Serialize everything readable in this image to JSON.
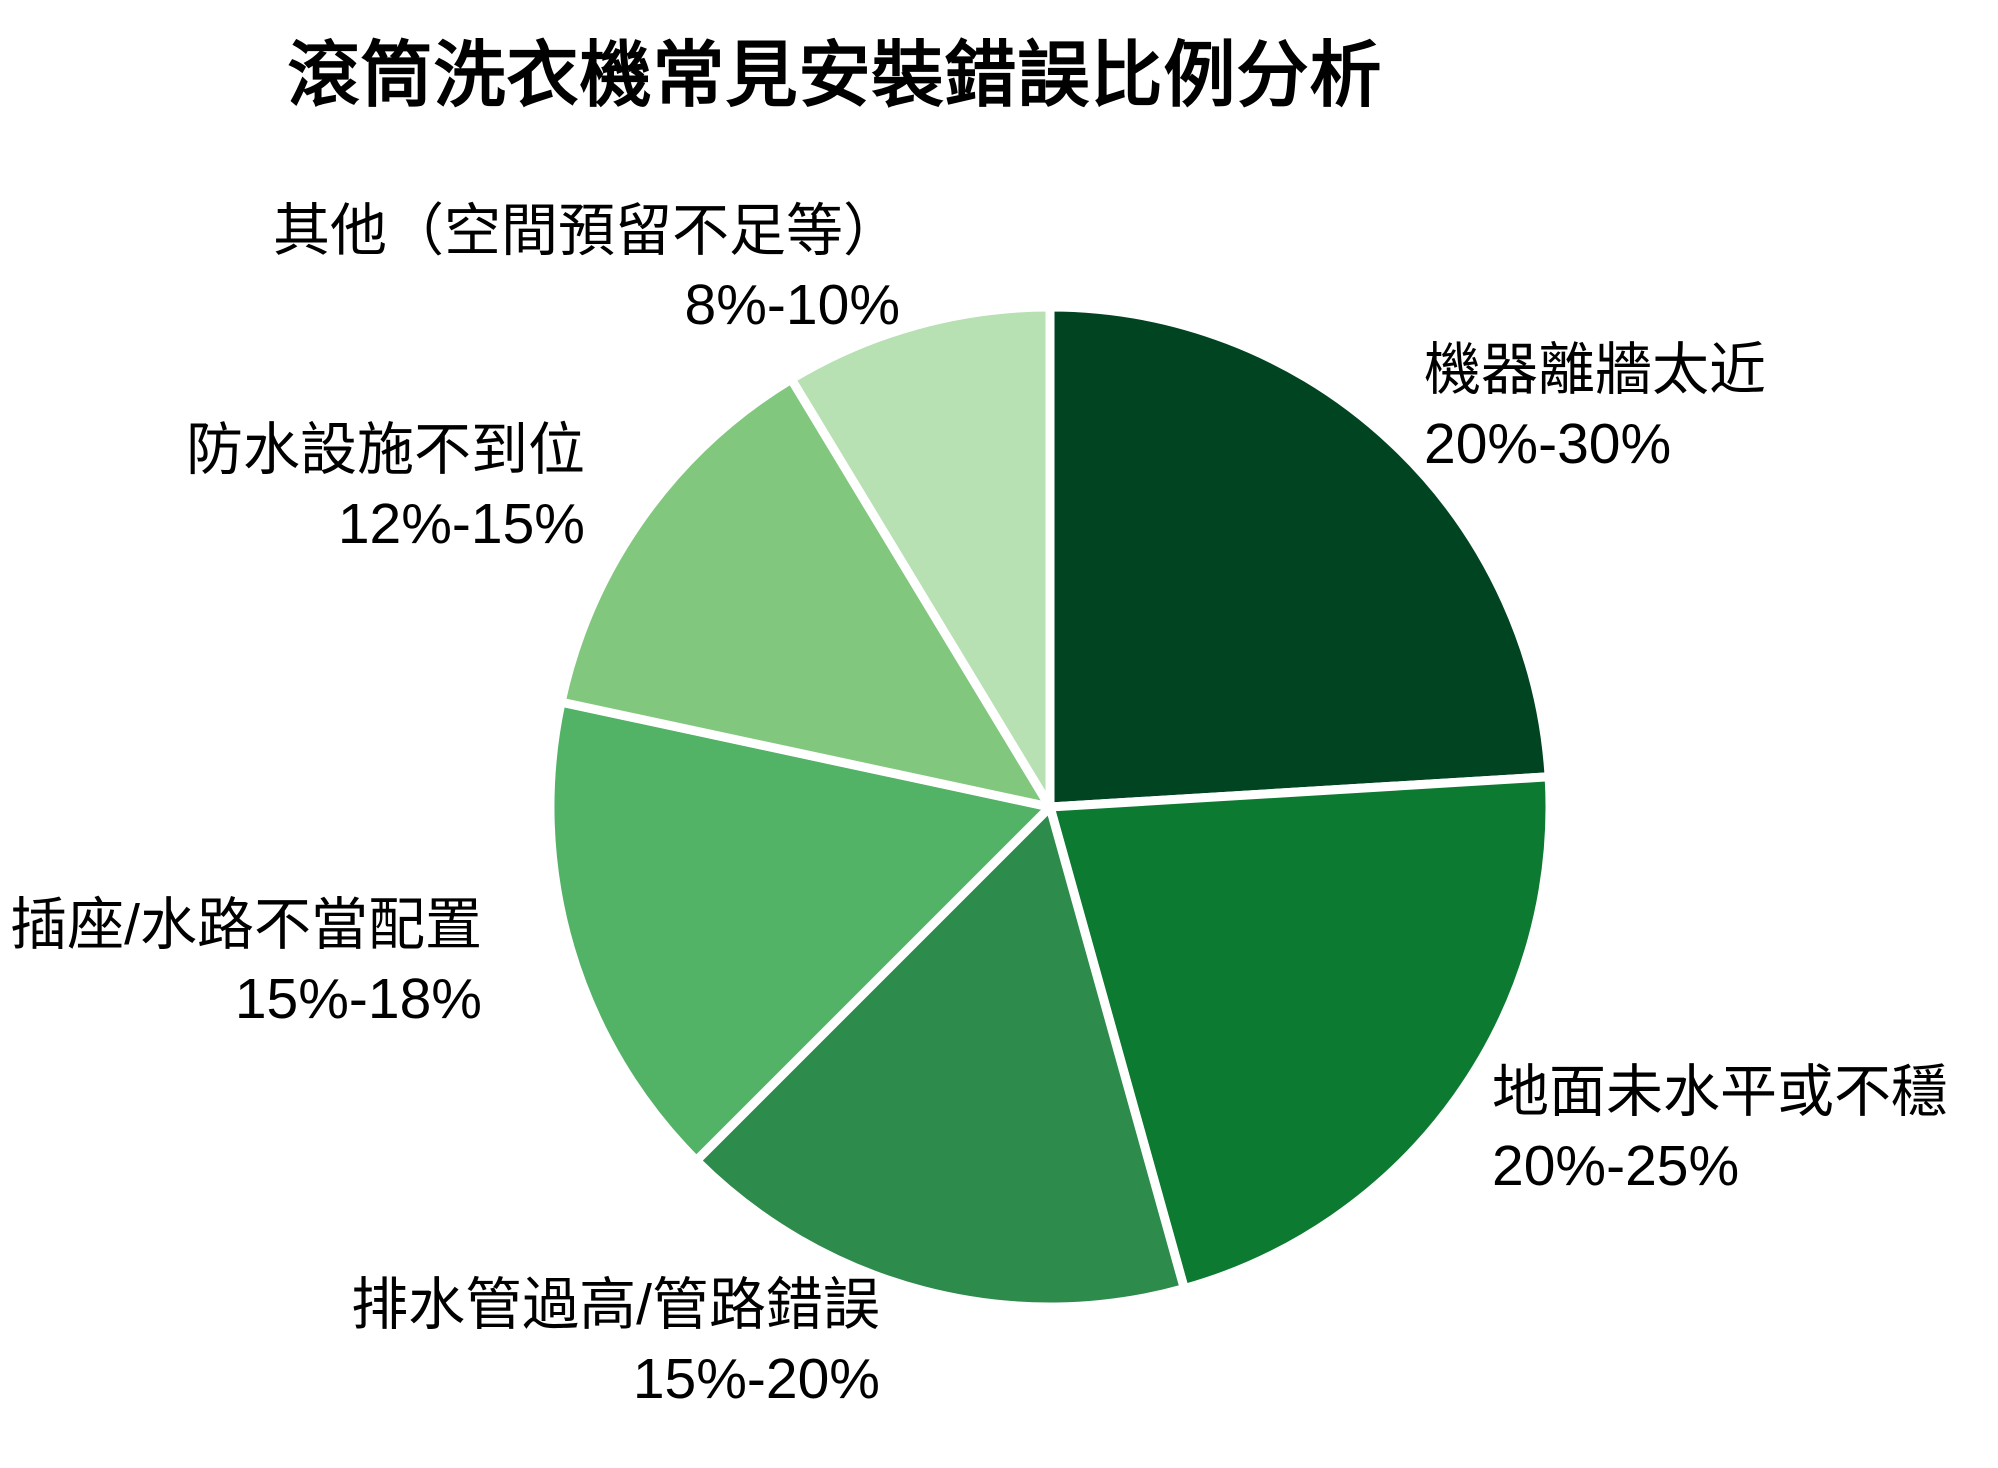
{
  "chart_data": {
    "type": "pie",
    "title": "滾筒洗衣機常見安裝錯誤比例分析",
    "direction": "clockwise",
    "start_angle": "12-o'clock",
    "legend": "none",
    "background_color": "#ffffff",
    "edge_color": "#ffffff",
    "text_color": "#000000",
    "slices": [
      {
        "label": "機器離牆太近",
        "range": "20%-30%",
        "value_midpoint": 25,
        "color": "#014421"
      },
      {
        "label": "地面未水平或不穩",
        "range": "20%-25%",
        "value_midpoint": 22.5,
        "color": "#0d7a31"
      },
      {
        "label": "排水管過高/管路錯誤",
        "range": "15%-20%",
        "value_midpoint": 17.5,
        "color": "#2d8b4b"
      },
      {
        "label": "插座/水路不當配置",
        "range": "15%-18%",
        "value_midpoint": 16.5,
        "color": "#52b266"
      },
      {
        "label": "防水設施不到位",
        "range": "12%-15%",
        "value_midpoint": 13.5,
        "color": "#82c77e"
      },
      {
        "label": "其他（空間預留不足等）",
        "range": "8%-10%",
        "value_midpoint": 9,
        "color": "#b7e0b3"
      }
    ]
  }
}
